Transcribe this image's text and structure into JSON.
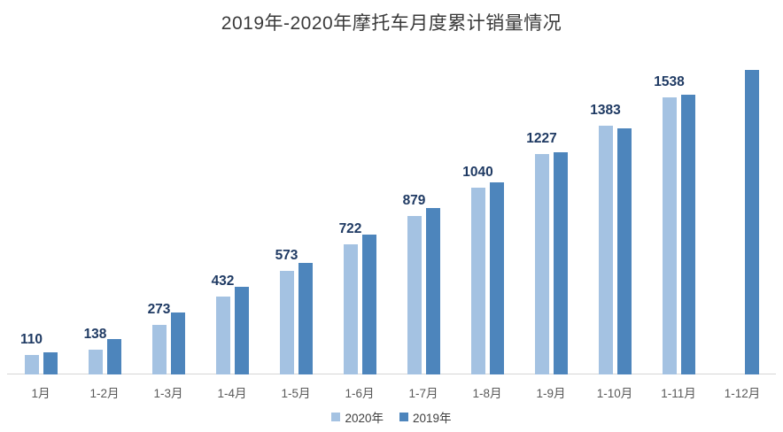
{
  "chart_data": {
    "type": "bar",
    "title": "2019年-2020年摩托车月度累计销量情况",
    "categories": [
      "1月",
      "1-2月",
      "1-3月",
      "1-4月",
      "1-5月",
      "1-6月",
      "1-7月",
      "1-8月",
      "1-9月",
      "1-10月",
      "1-11月",
      "1-12月"
    ],
    "series": [
      {
        "name": "2020年",
        "color": "#a4c2e2",
        "show_labels": true,
        "values": [
          110,
          138,
          273,
          432,
          573,
          722,
          879,
          1040,
          1227,
          1383,
          1538,
          null
        ]
      },
      {
        "name": "2019年",
        "color": "#4d85bc",
        "show_labels": false,
        "values": [
          123,
          196,
          345,
          487,
          620,
          777,
          926,
          1065,
          1232,
          1368,
          1556,
          1690
        ]
      }
    ],
    "xlabel": "",
    "ylabel": "",
    "ylim": [
      0,
      1800
    ],
    "grid": false,
    "y_axis_visible": false,
    "legend_position": "bottom",
    "label_color": "#1f3a63",
    "axis_line_color": "#d6d6d6",
    "tick_label_color": "#595959"
  }
}
